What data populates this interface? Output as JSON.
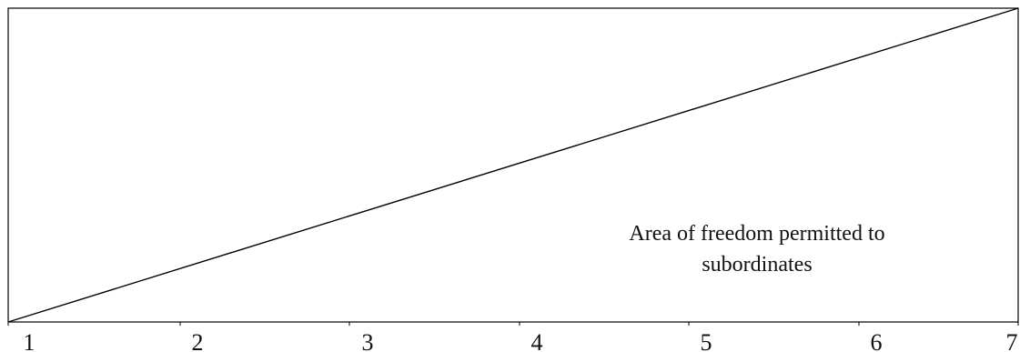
{
  "diagram": {
    "scale_labels": [
      "1",
      "2",
      "3",
      "4",
      "5",
      "6",
      "7"
    ],
    "area_label_line1": "Area of freedom permitted to",
    "area_label_line2": "subordinates",
    "line_color": "#000000"
  }
}
